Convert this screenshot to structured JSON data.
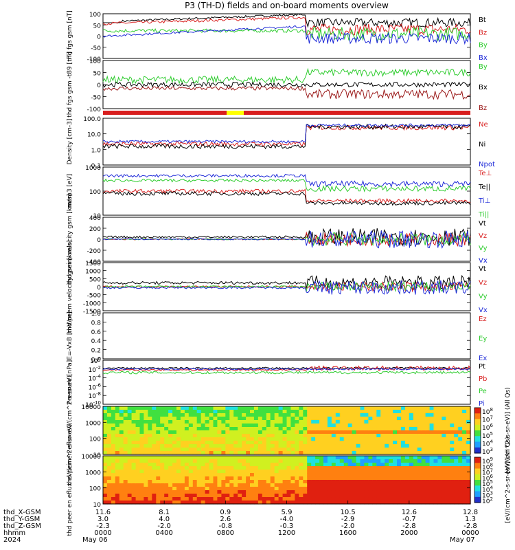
{
  "title": "P3 (TH-D) fields and on-board moments overview",
  "colors": {
    "black": "#000000",
    "red": "#d81e1e",
    "green": "#2ecc2e",
    "blue": "#1e2ad8",
    "darkred": "#9b1a1a",
    "yellow": "#ffff00"
  },
  "footer": {
    "rows": [
      {
        "label": "thd_X-GSM",
        "values": [
          "11.6",
          "8.1",
          "0.9",
          "5.9",
          "10.5",
          "12.6",
          "12.8"
        ]
      },
      {
        "label": "thd_Y-GSM",
        "values": [
          "3.0",
          "4.0",
          "2.6",
          "-4.0",
          "-2.9",
          "-0.7",
          "1.3"
        ]
      },
      {
        "label": "thd_Z-GSM",
        "values": [
          "-2.3",
          "-2.0",
          "-0.8",
          "-0.3",
          "-2.0",
          "-2.8",
          "-2.8"
        ]
      },
      {
        "label": "hhmm",
        "values": [
          "0000",
          "0400",
          "0800",
          "1200",
          "1600",
          "2000",
          "0000"
        ]
      }
    ],
    "year": "2024",
    "date_start": "May 06",
    "date_end": "May 07"
  },
  "chart_data": [
    {
      "type": "line",
      "ylabel": "thd fgs gsm [nT]",
      "ylim": [
        -100,
        100
      ],
      "ticks": [
        "100",
        "50",
        "0",
        "-50",
        "-100"
      ],
      "series": [
        {
          "name": "Bt",
          "color": "black"
        },
        {
          "name": "Bz",
          "color": "red"
        },
        {
          "name": "By",
          "color": "green"
        },
        {
          "name": "Bx",
          "color": "blue"
        }
      ]
    },
    {
      "type": "line",
      "ylabel": "thd fgs gsm -t89 [nT]",
      "ylim": [
        -100,
        100
      ],
      "ticks": [
        "100",
        "50",
        "0",
        "-50",
        "-100"
      ],
      "series": [
        {
          "name": "By",
          "color": "green"
        },
        {
          "name": "Bx",
          "color": "black"
        },
        {
          "name": "Bz",
          "color": "darkred"
        }
      ]
    },
    {
      "type": "line",
      "ylabel": "Density [cm-3]",
      "yscale": "log",
      "ticks": [
        "100.0",
        "10.0",
        "1.0",
        "0.1"
      ],
      "series": [
        {
          "name": "Ne",
          "color": "red"
        },
        {
          "name": "Ni",
          "color": "black"
        },
        {
          "name": "Npot",
          "color": "blue"
        }
      ]
    },
    {
      "type": "line",
      "ylabel": "mom3 [eV]",
      "yscale": "log",
      "ticks": [
        "1000",
        "100",
        "10"
      ],
      "series": [
        {
          "name": "Te⊥",
          "color": "red"
        },
        {
          "name": "Te||",
          "color": "black"
        },
        {
          "name": "Ti⊥",
          "color": "blue"
        },
        {
          "name": "Ti||",
          "color": "green"
        }
      ]
    },
    {
      "type": "line",
      "ylabel": "thd peim velocity gsm [km/s]",
      "ylim": [
        -400,
        400
      ],
      "ticks": [
        "400",
        "200",
        "0",
        "-200",
        "-400"
      ],
      "series": [
        {
          "name": "Vt",
          "color": "black"
        },
        {
          "name": "Vz",
          "color": "red"
        },
        {
          "name": "Vy",
          "color": "green"
        },
        {
          "name": "Vx",
          "color": "blue"
        }
      ]
    },
    {
      "type": "line",
      "ylabel": "thd peem velocity gsm [km/s]",
      "ylim": [
        -1500,
        1500
      ],
      "ticks": [
        "1500",
        "1000",
        "500",
        "0",
        "-500",
        "-1000",
        "-1500"
      ],
      "series": [
        {
          "name": "Vt",
          "color": "black"
        },
        {
          "name": "Vz",
          "color": "red"
        },
        {
          "name": "Vy",
          "color": "green"
        },
        {
          "name": "Vx",
          "color": "blue"
        }
      ]
    },
    {
      "type": "line",
      "ylabel": "E=-VxB [mV/m]",
      "ylim": [
        0,
        1
      ],
      "ticks": [
        "1.0",
        "0.8",
        "0.6",
        "0.4",
        "0.2",
        "0.0"
      ],
      "series": [
        {
          "name": "Ez",
          "color": "red"
        },
        {
          "name": "Ey",
          "color": "green"
        },
        {
          "name": "Ex",
          "color": "blue"
        }
      ]
    },
    {
      "type": "line",
      "ylabel": "Pressure [nPa]",
      "yscale": "log",
      "ticks": [
        "10^0",
        "10^-2",
        "10^-4",
        "10^-6",
        "10^-8",
        "10^-10"
      ],
      "series": [
        {
          "name": "Pt",
          "color": "black"
        },
        {
          "name": "Pb",
          "color": "red"
        },
        {
          "name": "Pe",
          "color": "green"
        },
        {
          "name": "Pi",
          "color": "blue"
        }
      ]
    },
    {
      "type": "heatmap",
      "ylabel": "thd peir en eflux eV/(cm^2-s-sr-eV)",
      "yscale": "log",
      "ticks": [
        "10000",
        "1000",
        "100",
        "10"
      ],
      "colorbar": {
        "label": "[eV/(cm^2-s-sr-eV)] (All Qs)",
        "ticks": [
          "10^8",
          "10^7",
          "10^6",
          "10^5",
          "10^4",
          "10^3"
        ]
      }
    },
    {
      "type": "heatmap",
      "ylabel": "thd peer en eflux eV/(cm^2-s-sr-eV)",
      "yscale": "log",
      "ticks": [
        "10000",
        "1000",
        "100",
        "10"
      ],
      "colorbar": {
        "label": "[eV/(cm^2-s-sr-eV)] (All Qs)",
        "ticks": [
          "10^9",
          "10^8",
          "10^7",
          "10^6",
          "10^5",
          "10^4",
          "10^3",
          "10^2"
        ]
      }
    }
  ]
}
